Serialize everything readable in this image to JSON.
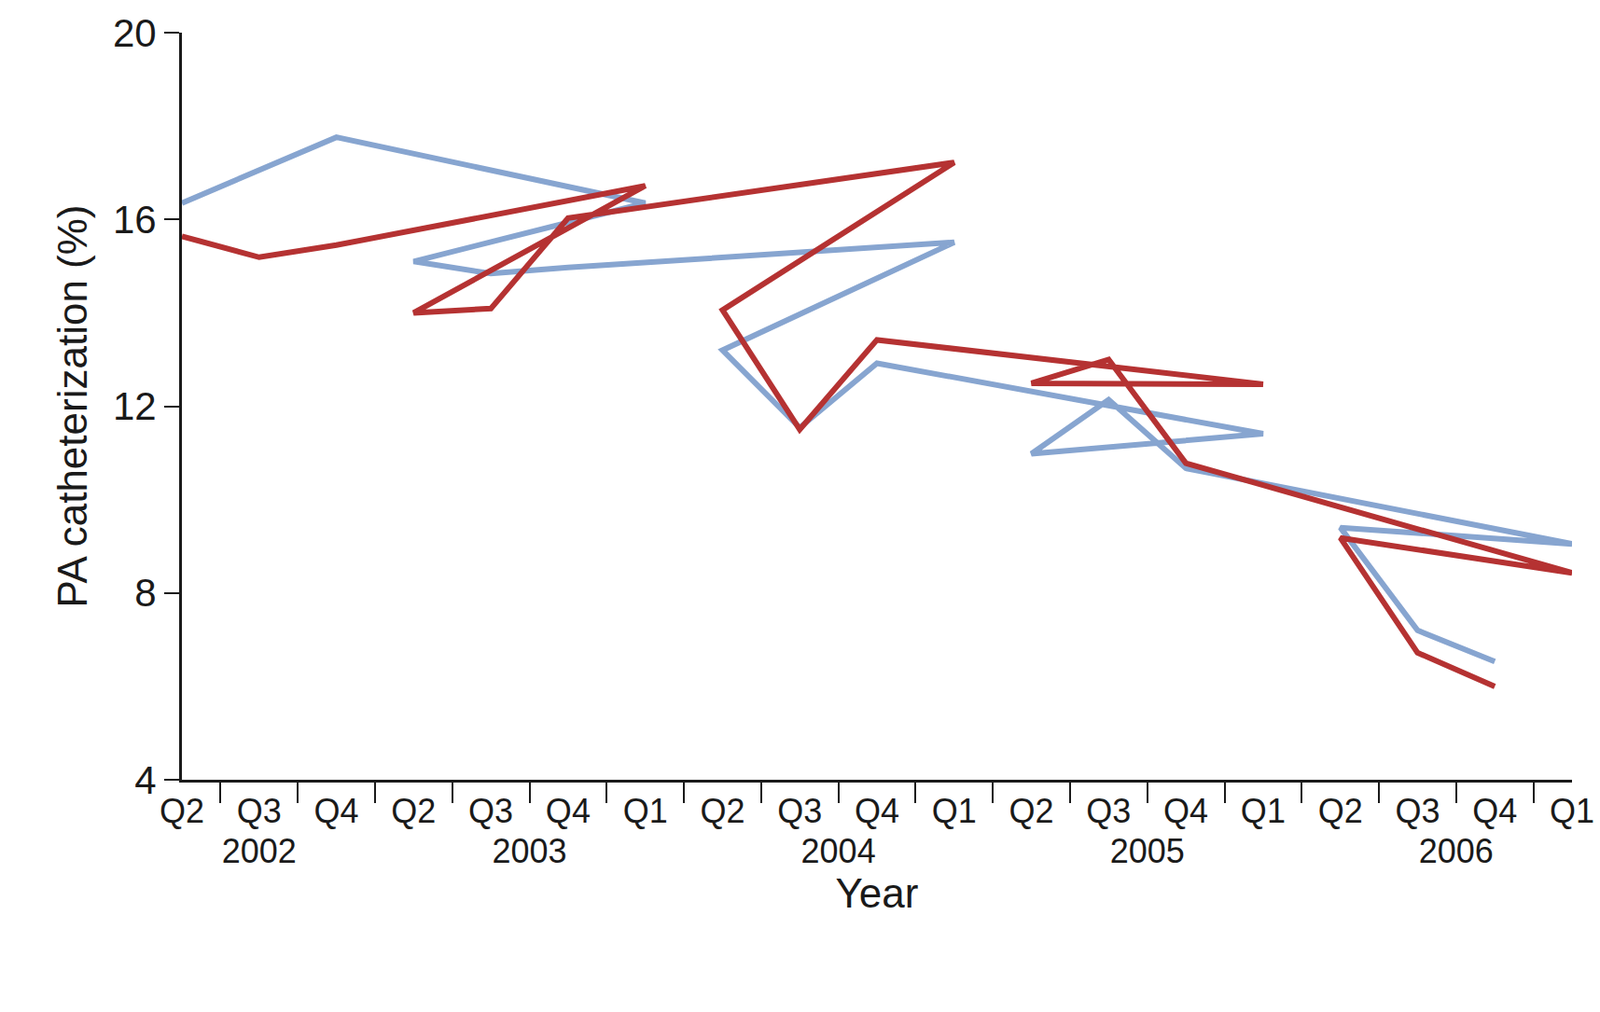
{
  "chart_data": {
    "type": "line",
    "x_label": "Year",
    "y_label": "PA catheterization (%)",
    "categories": [
      "Q2",
      "Q3",
      "Q4",
      "Q1",
      "Q2",
      "Q3",
      "Q4",
      "Q1",
      "Q2",
      "Q3",
      "Q4",
      "Q1",
      "Q2",
      "Q3",
      "Q4",
      "Q1",
      "Q2",
      "Q3",
      "Q4"
    ],
    "x_groups": [
      "2002",
      "2002",
      "2002",
      "2003",
      "2003",
      "2003",
      "2003",
      "2004",
      "2004",
      "2004",
      "2004",
      "2005",
      "2005",
      "2005",
      "2005",
      "2006",
      "2006",
      "2006",
      "2006"
    ],
    "series": [
      {
        "color": "#87a5d0",
        "values": [
          16.35,
          17.05,
          17.76,
          16.35,
          15.1,
          14.84,
          14.97,
          15.51,
          13.2,
          11.54,
          12.92,
          11.41,
          10.98,
          12.14,
          10.67,
          9.05,
          9.4,
          7.2,
          6.53
        ]
      },
      {
        "color": "#b53232",
        "values": [
          15.64,
          15.19,
          15.45,
          16.72,
          14.0,
          14.09,
          16.03,
          17.22,
          14.06,
          11.5,
          13.42,
          12.47,
          12.49,
          13.0,
          10.78,
          8.43,
          9.18,
          6.72,
          6.0
        ]
      }
    ],
    "ylim": [
      4,
      20
    ],
    "yticks": [
      4,
      8,
      12,
      16,
      20
    ],
    "grid": false
  }
}
